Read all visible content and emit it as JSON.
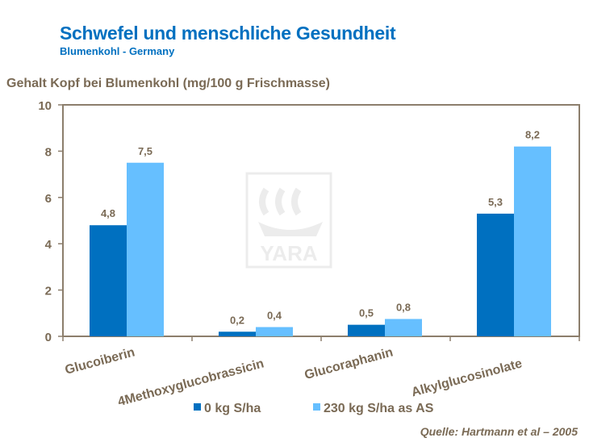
{
  "header": {
    "title": "Schwefel und menschliche Gesundheit",
    "subtitle": "Blumenkohl  - Germany"
  },
  "source": "Quelle: Hartmann et al – 2005",
  "watermark": "YARA",
  "chart_data": {
    "type": "bar",
    "title": "",
    "ylabel": "Gehalt Kopf bei Blumenkohl (mg/100 g Frischmasse)",
    "xlabel": "",
    "ylim": [
      0,
      10
    ],
    "yticks": [
      "0",
      "2",
      "4",
      "6",
      "8",
      "10"
    ],
    "grid": false,
    "legend": "bottom",
    "categories": [
      "Glucoiberin",
      "4Methoxyglucobrassicin",
      "Glucoraphanin",
      "Alkylglucosinolate"
    ],
    "series": [
      {
        "name": "0 kg S/ha",
        "color": "#0070c0",
        "values": [
          4.8,
          0.2,
          0.5,
          5.3
        ],
        "labels": [
          "4,8",
          "0,2",
          "0,5",
          "5,3"
        ]
      },
      {
        "name": "230 kg S/ha as AS",
        "color": "#66bfff",
        "values": [
          7.5,
          0.4,
          0.75,
          8.2
        ],
        "labels": [
          "7,5",
          "0,4",
          "0,8",
          "8,2"
        ]
      }
    ]
  }
}
